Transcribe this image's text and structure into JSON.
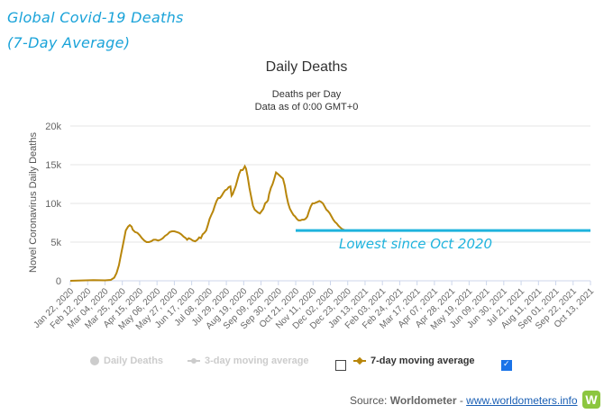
{
  "annotation": {
    "title_line1": "Global Covid-19 Deaths",
    "title_line2": "(7-Day Average)",
    "callout_text": "Lowest since Oct 2020",
    "callout_color": "#1fb3dd",
    "callout_level": 6500
  },
  "chart_data": {
    "type": "line",
    "title": "Daily Deaths",
    "subtitle_1": "Deaths per Day",
    "subtitle_2": "Data as of 0:00 GMT+0",
    "ylabel": "Novel Coronavirus Daily Deaths",
    "ylim": [
      0,
      20000
    ],
    "yticks": [
      0,
      5000,
      10000,
      15000,
      20000
    ],
    "ytick_labels": [
      "0",
      "5k",
      "10k",
      "15k",
      "20k"
    ],
    "xtick_labels": [
      "Jan 22, 2020",
      "Feb 12, 2020",
      "Mar 04, 2020",
      "Mar 25, 2020",
      "Apr 15, 2020",
      "May 06, 2020",
      "May 27, 2020",
      "Jun 17, 2020",
      "Jul 08, 2020",
      "Jul 29, 2020",
      "Aug 19, 2020",
      "Sep 09, 2020",
      "Sep 30, 2020",
      "Oct 21, 2020",
      "Nov 11, 2020",
      "Dec 02, 2020",
      "Dec 23, 2020",
      "Jan 13, 2021",
      "Feb 03, 2021",
      "Feb 24, 2021",
      "Mar 17, 2021",
      "Apr 07, 2021",
      "Apr 28, 2021",
      "May 19, 2021",
      "Jun 09, 2021",
      "Jun 30, 2021",
      "Jul 21, 2021",
      "Aug 11, 2021",
      "Sep 01, 2021",
      "Sep 22, 2021",
      "Oct 13, 2021"
    ],
    "grid": true,
    "line_color": "#b8860b",
    "series": [
      {
        "name": "7-day moving average",
        "values": [
          [
            0,
            0
          ],
          [
            2,
            50
          ],
          [
            4,
            80
          ],
          [
            6,
            60
          ],
          [
            7,
            120
          ],
          [
            7.6,
            400
          ],
          [
            8,
            1000
          ],
          [
            8.4,
            2000
          ],
          [
            8.8,
            3500
          ],
          [
            9.2,
            5000
          ],
          [
            9.6,
            6500
          ],
          [
            10,
            7000
          ],
          [
            10.3,
            7200
          ],
          [
            10.6,
            7000
          ],
          [
            10.8,
            6600
          ],
          [
            11.2,
            6300
          ],
          [
            11.6,
            6200
          ],
          [
            12,
            5900
          ],
          [
            12.4,
            5500
          ],
          [
            12.8,
            5200
          ],
          [
            13.2,
            5000
          ],
          [
            13.6,
            5000
          ],
          [
            14,
            5100
          ],
          [
            14.4,
            5300
          ],
          [
            14.8,
            5300
          ],
          [
            15.2,
            5200
          ],
          [
            15.6,
            5300
          ],
          [
            16,
            5500
          ],
          [
            16.4,
            5800
          ],
          [
            16.8,
            6000
          ],
          [
            17.2,
            6300
          ],
          [
            17.6,
            6400
          ],
          [
            18,
            6400
          ],
          [
            18.4,
            6300
          ],
          [
            18.8,
            6200
          ],
          [
            19.2,
            6000
          ],
          [
            19.6,
            5700
          ],
          [
            20,
            5500
          ],
          [
            20.2,
            5300
          ],
          [
            20.5,
            5500
          ],
          [
            20.8,
            5400
          ],
          [
            21.2,
            5200
          ],
          [
            21.6,
            5100
          ],
          [
            22,
            5300
          ],
          [
            22.3,
            5600
          ],
          [
            22.6,
            5500
          ],
          [
            22.9,
            6000
          ],
          [
            23.2,
            6200
          ],
          [
            23.5,
            6500
          ],
          [
            23.8,
            7200
          ],
          [
            24.1,
            8000
          ],
          [
            24.4,
            8500
          ],
          [
            24.7,
            9000
          ],
          [
            25,
            9700
          ],
          [
            25.3,
            10300
          ],
          [
            25.6,
            10700
          ],
          [
            25.9,
            10700
          ],
          [
            26.2,
            11000
          ],
          [
            26.5,
            11400
          ],
          [
            26.8,
            11700
          ],
          [
            27.1,
            11800
          ],
          [
            27.4,
            12100
          ],
          [
            27.7,
            12200
          ],
          [
            27.9,
            11000
          ],
          [
            28.1,
            11200
          ],
          [
            28.3,
            11600
          ],
          [
            28.6,
            12200
          ],
          [
            28.9,
            13000
          ],
          [
            29.2,
            13800
          ],
          [
            29.5,
            14300
          ],
          [
            29.8,
            14300
          ],
          [
            30,
            14500
          ],
          [
            30.2,
            14800
          ],
          [
            30.4,
            14500
          ],
          [
            30.7,
            13400
          ],
          [
            31,
            12000
          ],
          [
            31.3,
            10800
          ],
          [
            31.6,
            9700
          ],
          [
            31.9,
            9200
          ],
          [
            32.2,
            9000
          ],
          [
            32.5,
            8800
          ],
          [
            32.8,
            8700
          ],
          [
            33.1,
            9000
          ],
          [
            33.4,
            9300
          ],
          [
            33.7,
            10000
          ],
          [
            34,
            10200
          ],
          [
            34.2,
            10400
          ],
          [
            34.4,
            11200
          ],
          [
            34.7,
            12000
          ],
          [
            35,
            12500
          ],
          [
            35.3,
            13200
          ],
          [
            35.6,
            14000
          ],
          [
            35.9,
            13800
          ],
          [
            36.2,
            13600
          ],
          [
            36.5,
            13400
          ],
          [
            36.8,
            13200
          ],
          [
            37.1,
            12300
          ],
          [
            37.4,
            11000
          ],
          [
            37.7,
            10000
          ],
          [
            38,
            9300
          ],
          [
            38.3,
            8900
          ],
          [
            38.6,
            8500
          ],
          [
            38.9,
            8300
          ],
          [
            39.2,
            8000
          ],
          [
            39.5,
            7800
          ],
          [
            39.8,
            7800
          ],
          [
            40.1,
            7900
          ],
          [
            40.4,
            7900
          ],
          [
            40.7,
            8000
          ],
          [
            41,
            8300
          ],
          [
            41.3,
            9000
          ],
          [
            41.6,
            9600
          ],
          [
            41.9,
            10000
          ],
          [
            42.2,
            10000
          ],
          [
            42.5,
            10100
          ],
          [
            42.8,
            10200
          ],
          [
            43.1,
            10300
          ],
          [
            43.4,
            10200
          ],
          [
            43.7,
            10000
          ],
          [
            44,
            9600
          ],
          [
            44.3,
            9200
          ],
          [
            44.6,
            9000
          ],
          [
            44.9,
            8700
          ],
          [
            45.2,
            8300
          ],
          [
            45.5,
            7900
          ],
          [
            45.8,
            7600
          ],
          [
            46.1,
            7400
          ],
          [
            46.4,
            7100
          ],
          [
            46.7,
            6900
          ],
          [
            47,
            6700
          ],
          [
            47.3,
            6600
          ],
          [
            47.6,
            6500
          ]
        ]
      }
    ],
    "legend": [
      {
        "label": "Daily Deaths",
        "checked": false
      },
      {
        "label": "3-day moving average",
        "checked": false
      },
      {
        "label": "7-day moving average",
        "checked": true
      }
    ]
  },
  "footer": {
    "source_prefix": "Source: ",
    "source_name": "Worldometer",
    "separator": " - ",
    "link_text": "www.worldometers.info",
    "logo_letter": "W"
  }
}
